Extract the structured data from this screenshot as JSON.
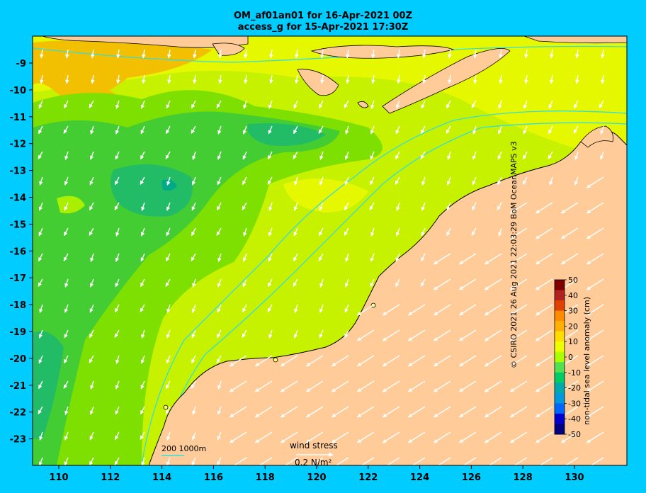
{
  "title": {
    "line1": "OM_af01an01 for 16-Apr-2021 00Z",
    "line2": "access_g for 15-Apr-2021 17:30Z"
  },
  "axes": {
    "lon_ticks": [
      "110",
      "112",
      "114",
      "116",
      "118",
      "120",
      "122",
      "124",
      "126",
      "128",
      "130"
    ],
    "lat_ticks": [
      "-9",
      "-10",
      "-11",
      "-12",
      "-13",
      "-14",
      "-15",
      "-16",
      "-17",
      "-18",
      "-19",
      "-20",
      "-21",
      "-22",
      "-23"
    ]
  },
  "colorbar": {
    "label": "non-tidal sea level anomaly (cm)",
    "ticks": [
      "50",
      "40",
      "30",
      "20",
      "10",
      "0",
      "-10",
      "-20",
      "-30",
      "-40",
      "-50"
    ],
    "colors": [
      "#800000",
      "#b22222",
      "#e04000",
      "#ff8c00",
      "#ffb000",
      "#ffdd00",
      "#eeff00",
      "#aaff00",
      "#50e050",
      "#00cc66",
      "#00aaaa",
      "#0099dd",
      "#0066ff",
      "#0000cc",
      "#000080"
    ]
  },
  "legend": {
    "isobaths": "200  1000m",
    "wind_label": "wind stress",
    "wind_scale": "0.2 N/m²"
  },
  "credit": "© CSIRO 2021  26 Aug 2021 22:03:29 BoM OceanMAPS v3",
  "colors": {
    "background": "#00ccff",
    "land": "#ffcc99",
    "isobath": "#33dddd"
  }
}
